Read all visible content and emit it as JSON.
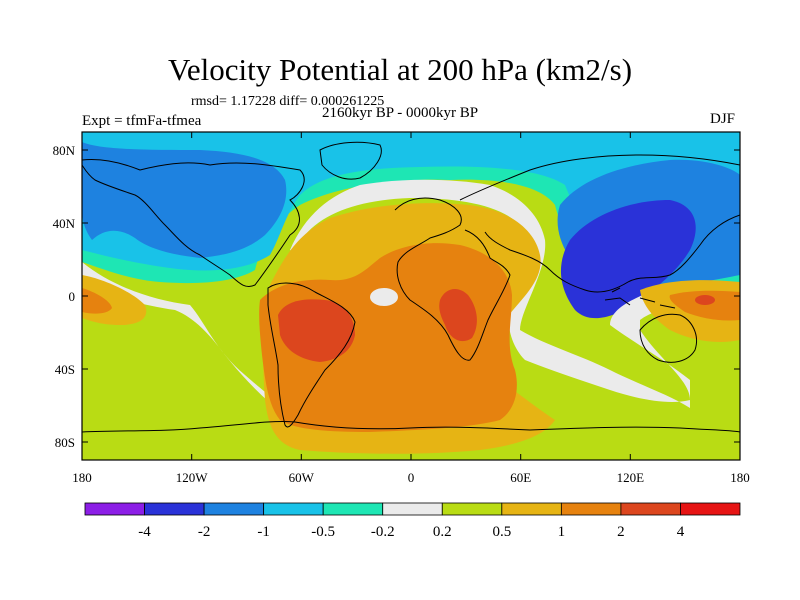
{
  "figure": {
    "title": "Velocity Potential at 200 hPa (km2/s)",
    "stats": "rmsd= 1.17228 diff= 0.000261225",
    "experiment": "Expt = tfmFa-tfmea",
    "period": "2160kyr BP - 0000kyr BP",
    "season": "DJF"
  },
  "map": {
    "projection": "cylindrical equidistant",
    "lon_range": [
      -180,
      180
    ],
    "lat_range": [
      -90,
      90
    ],
    "field": "velocity potential anomaly",
    "x_ticks": [
      "180",
      "120W",
      "60W",
      "0",
      "60E",
      "120E",
      "180"
    ],
    "y_ticks": [
      "80N",
      "40N",
      "0",
      "40S",
      "80S"
    ]
  },
  "colorbar": {
    "colors": [
      "#8c1ee6",
      "#2a32d8",
      "#1e82e0",
      "#19c2e8",
      "#1ee6b4",
      "#ebebeb",
      "#b9dc14",
      "#e6b414",
      "#e6820f",
      "#dc461e",
      "#e61414"
    ],
    "labels": [
      "-4",
      "-2",
      "-1",
      "-0.5",
      "-0.2",
      "0.2",
      "0.5",
      "1",
      "2",
      "4"
    ]
  }
}
